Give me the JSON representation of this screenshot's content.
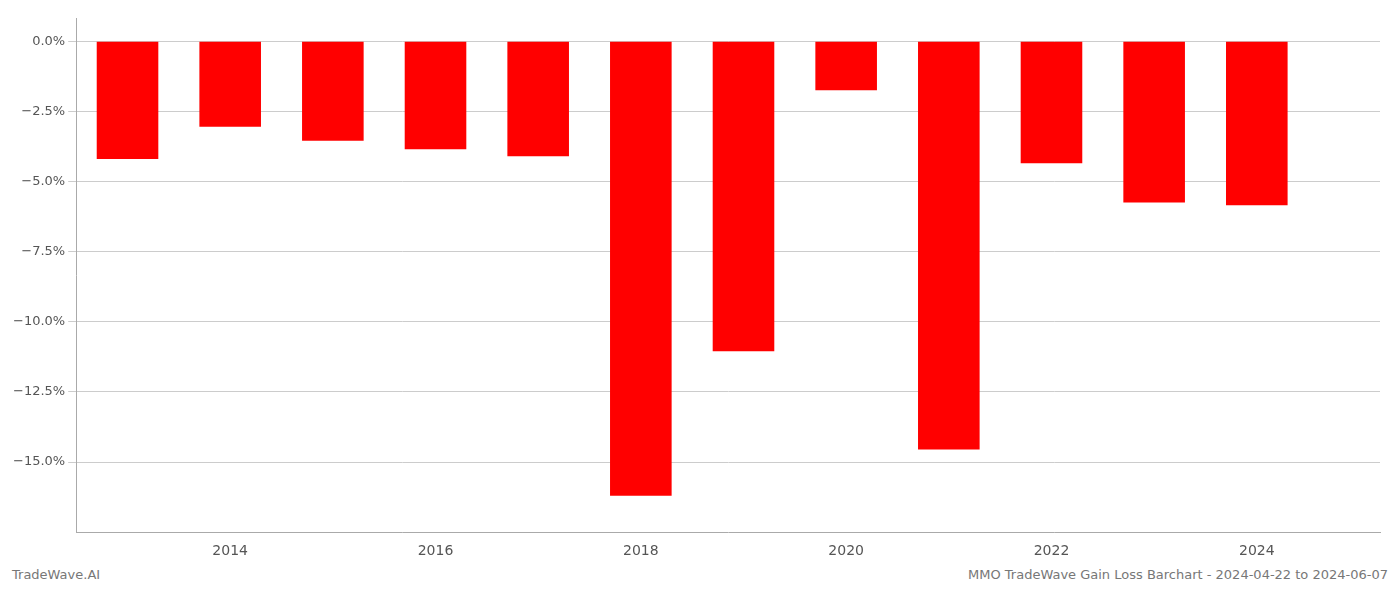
{
  "chart_data": {
    "type": "bar",
    "x": [
      2013,
      2014,
      2015,
      2016,
      2017,
      2018,
      2019,
      2020,
      2021,
      2022,
      2023,
      2024
    ],
    "values": [
      -4.2,
      -3.05,
      -3.55,
      -3.85,
      -4.1,
      -16.2,
      -11.05,
      -1.75,
      -14.55,
      -4.35,
      -5.75,
      -5.85
    ],
    "color": "#ff0000",
    "xlim": [
      2012.5,
      2025.2
    ],
    "xticks": [
      2014,
      2016,
      2018,
      2020,
      2022,
      2024
    ],
    "ylim": [
      -17.5,
      0.8
    ],
    "yticks": [
      {
        "value": 0.0,
        "label": "0.0%"
      },
      {
        "value": -2.5,
        "label": "−2.5%"
      },
      {
        "value": -5.0,
        "label": "−5.0%"
      },
      {
        "value": -7.5,
        "label": "−7.5%"
      },
      {
        "value": -10.0,
        "label": "−10.0%"
      },
      {
        "value": -12.5,
        "label": "−12.5%"
      },
      {
        "value": -15.0,
        "label": "−15.0%"
      }
    ],
    "grid": true,
    "annotations": [
      "TradeWave.AI",
      "MMO TradeWave Gain Loss Barchart - 2024-04-22 to 2024-06-07"
    ]
  }
}
